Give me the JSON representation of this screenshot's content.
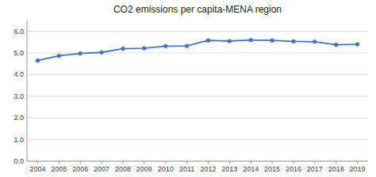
{
  "chart_data": {
    "type": "line",
    "title": "CO2 emissions per capita-MENA region",
    "x": [
      2004,
      2005,
      2006,
      2007,
      2008,
      2009,
      2010,
      2011,
      2012,
      2013,
      2014,
      2015,
      2016,
      2017,
      2018,
      2019
    ],
    "values": [
      4.65,
      4.87,
      4.98,
      5.03,
      5.2,
      5.22,
      5.32,
      5.33,
      5.58,
      5.55,
      5.6,
      5.58,
      5.54,
      5.52,
      5.38,
      5.4
    ],
    "color": "#4472C4",
    "marker": "circle",
    "xlim": [
      2003.5,
      2019.5
    ],
    "xticks": [
      2004,
      2005,
      2006,
      2007,
      2008,
      2009,
      2010,
      2011,
      2012,
      2013,
      2014,
      2015,
      2016,
      2017,
      2018,
      2019
    ],
    "ylim": [
      0.0,
      6.5
    ],
    "yticks": [
      {
        "value": 0.0,
        "label": "0.0"
      },
      {
        "value": 1.0,
        "label": "1.0"
      },
      {
        "value": 2.0,
        "label": "2.0"
      },
      {
        "value": 3.0,
        "label": "3.0"
      },
      {
        "value": 4.0,
        "label": "4.0"
      },
      {
        "value": 5.0,
        "label": "5.0"
      },
      {
        "value": 6.0,
        "label": "6.0"
      }
    ],
    "grid": true
  }
}
